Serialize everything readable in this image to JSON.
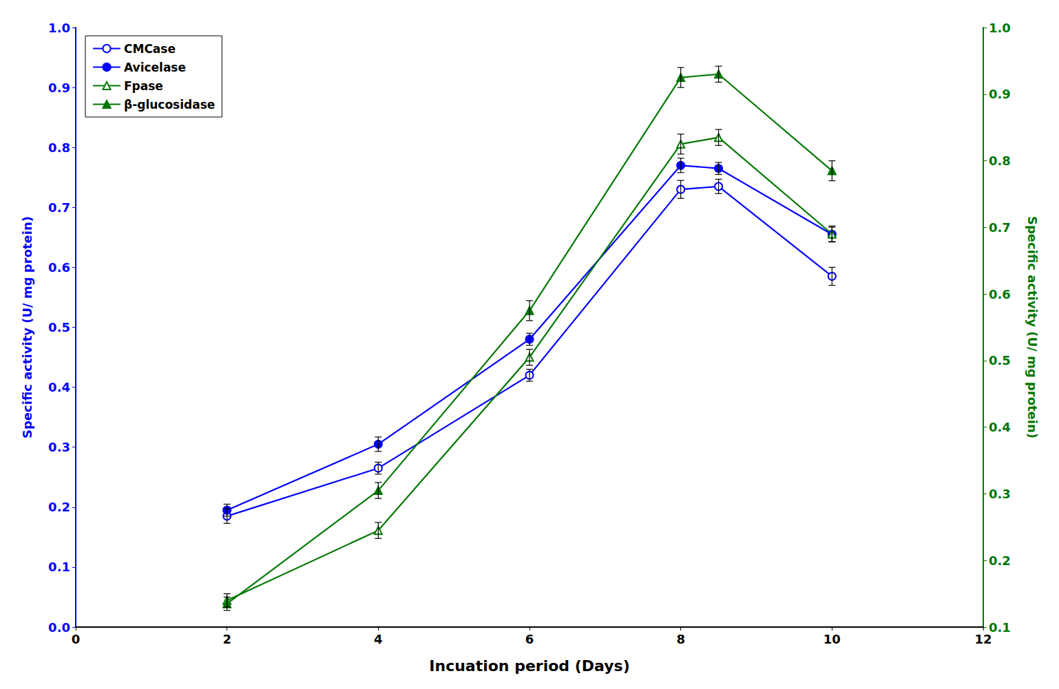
{
  "chart_data": {
    "type": "line",
    "x": [
      2,
      4,
      6,
      8,
      8.5,
      10
    ],
    "xlabel": "Incuation period (Days)",
    "ylabel": "Specific activity (U/ mg protein)",
    "y2label": "Specific activity (U/ mg protein)",
    "xlim": [
      0,
      12
    ],
    "xticks": [
      0,
      2,
      4,
      6,
      8,
      10,
      12
    ],
    "ylim": [
      0,
      1.0
    ],
    "yticks": [
      {
        "value": 0,
        "label": "0.0"
      },
      0.1,
      0.2,
      0.3,
      0.4,
      0.5,
      0.6,
      0.7,
      0.8,
      0.9,
      {
        "value": 1.0,
        "label": "1.0"
      }
    ],
    "y2lim": [
      0.1,
      1.0
    ],
    "y2ticks": [
      0.1,
      0.2,
      0.3,
      0.4,
      0.5,
      0.6,
      0.7,
      0.8,
      0.9,
      {
        "value": 1.0,
        "label": "1.0"
      }
    ],
    "grid": false,
    "legend": "upper left",
    "series": [
      {
        "name": "CMCase",
        "color": "#0000FF",
        "marker": "open-circle",
        "values": [
          0.185,
          0.265,
          0.42,
          0.73,
          0.735,
          0.585
        ],
        "errors": [
          0.012,
          0.01,
          0.01,
          0.015,
          0.012,
          0.015
        ]
      },
      {
        "name": "Avicelase",
        "color": "#0000FF",
        "marker": "circle",
        "values": [
          0.195,
          0.305,
          0.48,
          0.77,
          0.765,
          0.655
        ],
        "errors": [
          0.01,
          0.012,
          0.01,
          0.012,
          0.01,
          0.012
        ]
      },
      {
        "name": "Fpase",
        "color": "#007700",
        "marker": "open-triangle",
        "axis": "y2",
        "values": [
          0.14,
          0.245,
          0.505,
          0.825,
          0.835,
          0.69
        ],
        "errors": [
          0.01,
          0.012,
          0.012,
          0.015,
          0.012,
          0.012
        ]
      },
      {
        "name": "β-glucosidase",
        "color": "#007700",
        "marker": "triangle",
        "axis": "y2",
        "values": [
          0.135,
          0.305,
          0.575,
          0.925,
          0.93,
          0.785
        ],
        "errors": [
          0.01,
          0.012,
          0.015,
          0.015,
          0.012,
          0.015
        ]
      }
    ]
  }
}
